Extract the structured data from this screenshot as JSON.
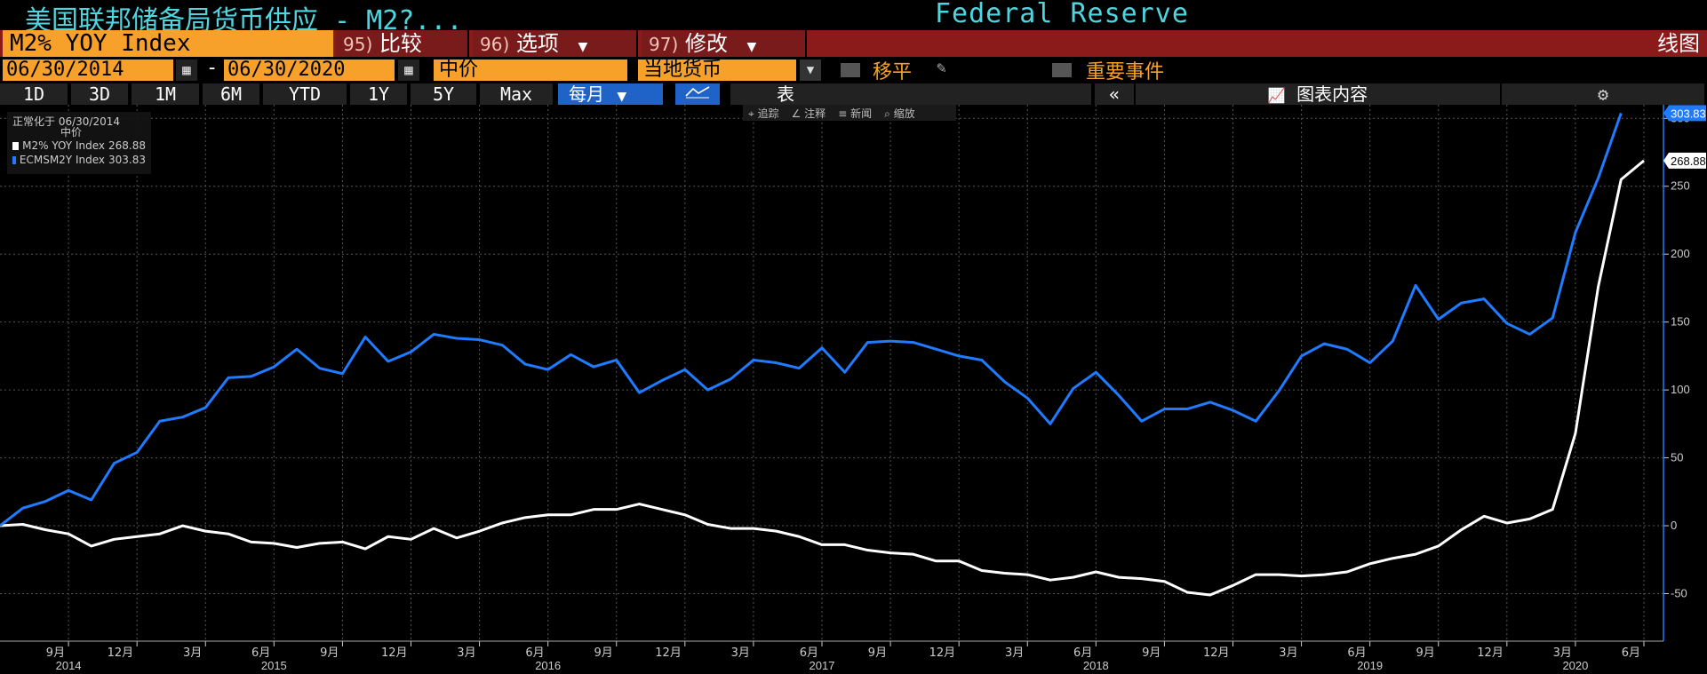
{
  "title": {
    "text": "美国联邦储备局货币供应 - M2?...",
    "source": "Federal Reserve"
  },
  "toolbar": {
    "ticker": "M2% YOY Index",
    "compare": {
      "num": "95)",
      "label": "比较"
    },
    "options": {
      "num": "96)",
      "label": "选项"
    },
    "modify": {
      "num": "97)",
      "label": "修改"
    },
    "view_label": "线图"
  },
  "controls": {
    "start_date": "06/30/2014",
    "end_date": "06/30/2020",
    "date_dash": "-",
    "price": "中价",
    "currency": "当地货币",
    "moving_avg_label": "移平",
    "events_label": "重要事件"
  },
  "ranges": [
    "1D",
    "3D",
    "1M",
    "6M",
    "YTD",
    "1Y",
    "5Y",
    "Max"
  ],
  "frequency": "每月",
  "table_label": "表",
  "chart_content_label": "图表内容",
  "annotations": [
    "追踪",
    "注释",
    "新闻",
    "缩放"
  ],
  "legend": {
    "header": "正常化于 06/30/2014",
    "sub": "中价",
    "items": [
      {
        "label": "M2% YOY Index",
        "value": "268.88",
        "color": "#ffffff"
      },
      {
        "label": "ECMSM2Y Index",
        "value": "303.83",
        "color": "#1f7bff"
      }
    ]
  },
  "chart_data": {
    "type": "line",
    "ylim": [
      -85,
      310
    ],
    "y_ticks": [
      -50,
      0,
      50,
      100,
      150,
      200,
      250,
      300
    ],
    "y_tick_labels": [
      "-50",
      "0",
      "50",
      "100",
      "150",
      "200",
      "250",
      "300"
    ],
    "x_tick_labels": [
      "9月",
      "12月",
      "3月",
      "6月",
      "9月",
      "12月",
      "3月",
      "6月",
      "9月",
      "12月",
      "3月",
      "6月",
      "9月",
      "12月",
      "3月",
      "6月",
      "9月",
      "12月",
      "3月",
      "6月",
      "9月",
      "12月",
      "3月",
      "6月"
    ],
    "x_tick_months": [
      3,
      6,
      9,
      12,
      15,
      18,
      21,
      24,
      27,
      30,
      33,
      36,
      39,
      42,
      45,
      48,
      51,
      54,
      57,
      60,
      63,
      66,
      69,
      72
    ],
    "year_labels": [
      {
        "label": "2014",
        "month": 3
      },
      {
        "label": "2015",
        "month": 12
      },
      {
        "label": "2016",
        "month": 24
      },
      {
        "label": "2017",
        "month": 36
      },
      {
        "label": "2018",
        "month": 48
      },
      {
        "label": "2019",
        "month": 60
      },
      {
        "label": "2020",
        "month": 69
      }
    ],
    "last_labels": [
      "268.88",
      "303.83"
    ],
    "series": [
      {
        "name": "M2% YOY Index",
        "color": "#ffffff",
        "values": [
          0,
          1,
          -3,
          -6,
          -15,
          -10,
          -8,
          -6,
          0,
          -4,
          -6,
          -12,
          -13,
          -16,
          -13,
          -12,
          -17,
          -8,
          -10,
          -2,
          -9,
          -4,
          2,
          6,
          8,
          8,
          12,
          12,
          16,
          12,
          8,
          1,
          -2,
          -2,
          -4,
          -8,
          -14,
          -14,
          -18,
          -20,
          -21,
          -26,
          -26,
          -33,
          -35,
          -36,
          -40,
          -38,
          -34,
          -38,
          -39,
          -41,
          -49,
          -51,
          -44,
          -36,
          -36,
          -37,
          -36,
          -34,
          -28,
          -24,
          -21,
          -15,
          -3,
          7,
          2,
          5,
          12,
          68,
          176,
          255,
          268.88
        ]
      },
      {
        "name": "ECMSM2Y Index",
        "color": "#1f7bff",
        "values": [
          0,
          13,
          18,
          26,
          19,
          46,
          54,
          77,
          80,
          87,
          109,
          110,
          117,
          130,
          116,
          112,
          139,
          121,
          128,
          141,
          138,
          137,
          133,
          119,
          115,
          126,
          117,
          122,
          98,
          107,
          115,
          100,
          108,
          122,
          120,
          116,
          131,
          113,
          135,
          136,
          135,
          130,
          125,
          122,
          106,
          94,
          75,
          101,
          113,
          96,
          77,
          86,
          86,
          91,
          85,
          77,
          99,
          125,
          134,
          130,
          120,
          136,
          177,
          152,
          164,
          167,
          149,
          141,
          153,
          216,
          256,
          303.83
        ]
      }
    ]
  }
}
